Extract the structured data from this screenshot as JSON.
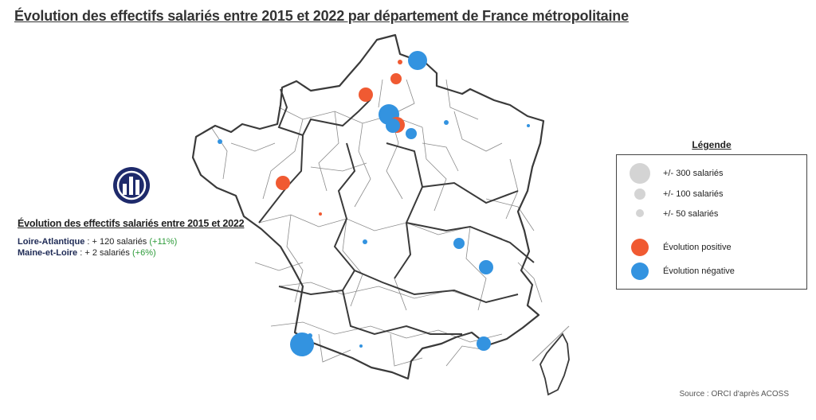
{
  "title": "Évolution des effectifs salariés entre 2015 et 2022 par département de France métropolitaine",
  "info": {
    "title": "Évolution des effectifs salariés entre 2015 et 2022",
    "rows": [
      {
        "name": "Loire-Atlantique",
        "text": " : + 120 salariés  ",
        "pct": "(+11%)"
      },
      {
        "name": "Maine-et-Loire",
        "text": " : + 2 salariés  ",
        "pct": "(+6%)"
      }
    ]
  },
  "legend": {
    "title": "Légende",
    "sizes": [
      {
        "label": "+/- 300 salariés",
        "value": 300
      },
      {
        "label": "+/- 100 salariés",
        "value": 100
      },
      {
        "label": "+/- 50 salariés",
        "value": 50
      }
    ],
    "colors": [
      {
        "label": "Évolution positive",
        "color": "#f05a32"
      },
      {
        "label": "Évolution négative",
        "color": "#3393e0"
      }
    ]
  },
  "source": "Source : ORCI d'après ACOSS",
  "colors": {
    "positive": "#f05a32",
    "negative": "#3393e0",
    "size_sample": "#d4d4d4",
    "logo": "#1e2a6b",
    "border": "#3a3a3a"
  },
  "icons": {
    "logo": "bar-chart-logo-icon"
  }
}
